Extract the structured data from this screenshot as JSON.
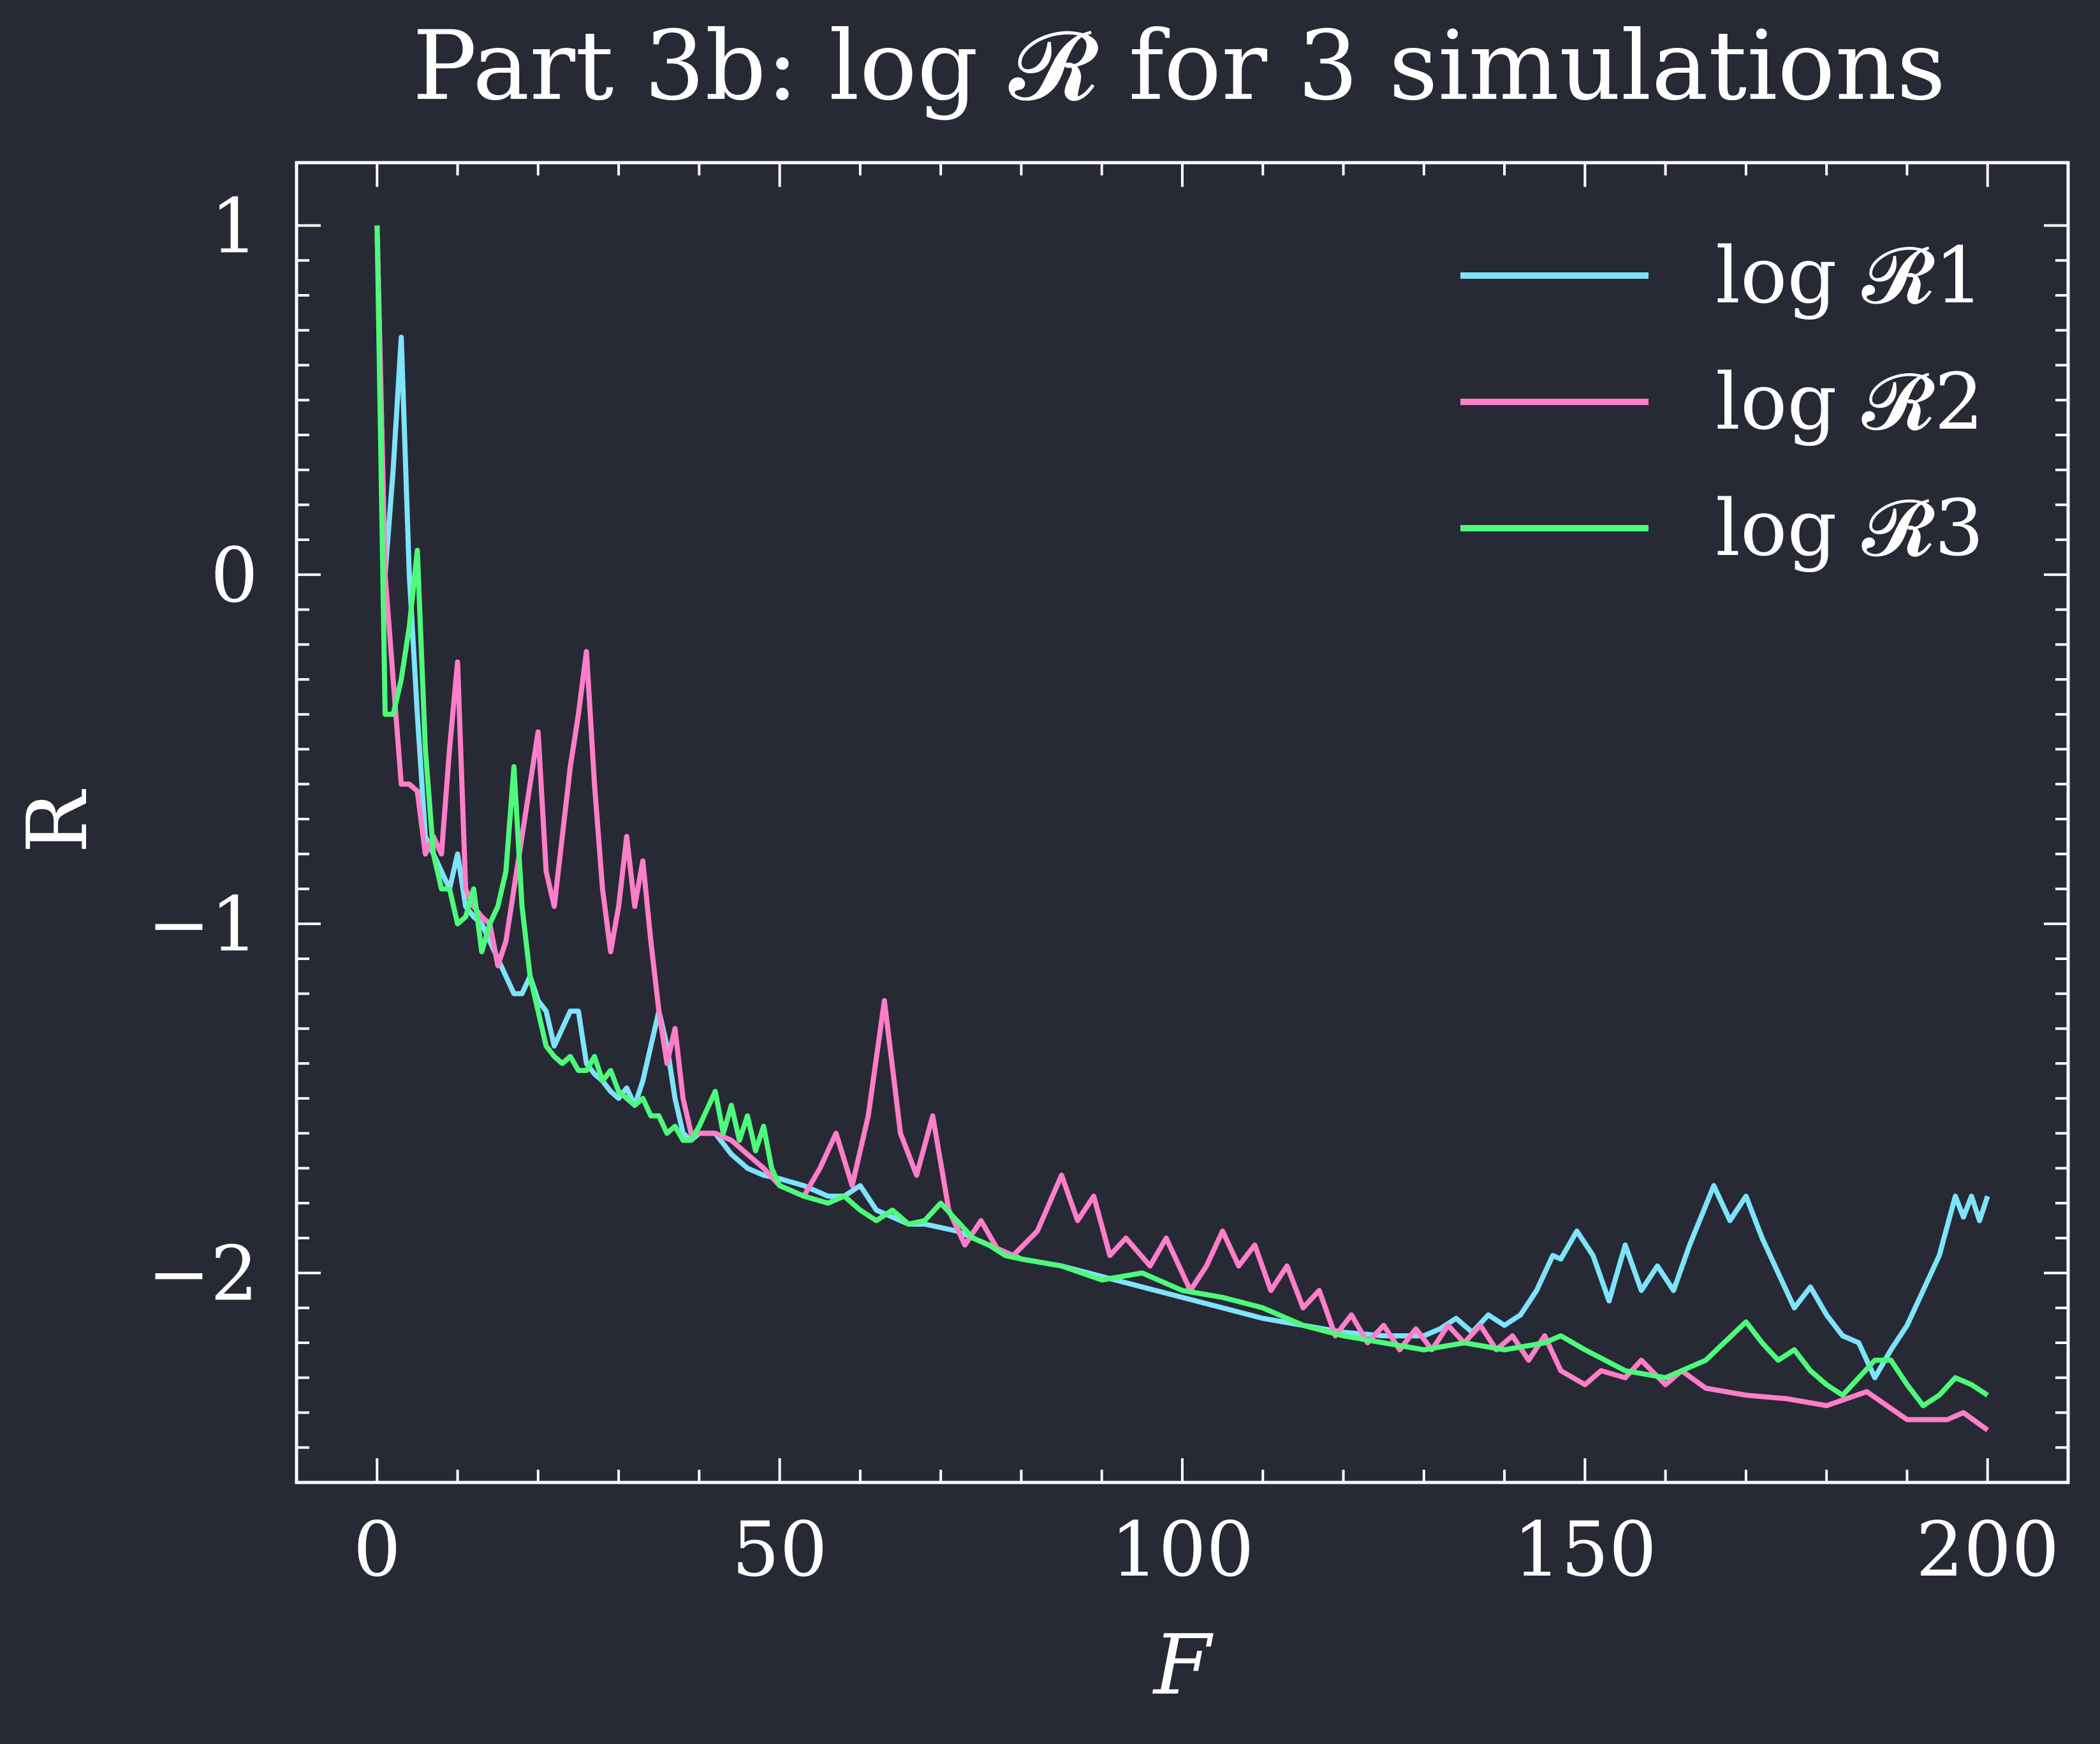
{
  "chart_data": {
    "type": "line",
    "title": "Part 3b: log 𝓡 for 3 simulations",
    "xlabel": "F",
    "ylabel": "R",
    "xlim": [
      -10,
      210
    ],
    "ylim": [
      -2.6,
      1.18
    ],
    "xticks": [
      0,
      50,
      100,
      150,
      200
    ],
    "xtick_labels": [
      "0",
      "50",
      "100",
      "150",
      "200"
    ],
    "yticks": [
      1,
      0,
      -1,
      -2
    ],
    "ytick_labels": [
      "1",
      "0",
      "−1",
      "−2"
    ],
    "grid": false,
    "legend_position": "top-right",
    "series": [
      {
        "name": "log 𝓡1",
        "color": "#7ee3fb",
        "x": [
          0,
          1,
          2,
          3,
          4,
          5,
          6,
          7,
          8,
          9,
          10,
          11,
          12,
          13,
          14,
          15,
          16,
          17,
          18,
          19,
          20,
          21,
          22,
          23,
          24,
          25,
          26,
          27,
          28,
          29,
          30,
          31,
          32,
          33,
          34,
          35,
          36,
          37,
          38,
          39,
          40,
          42,
          44,
          46,
          48,
          50,
          53,
          56,
          58,
          60,
          62,
          64,
          66,
          68,
          70,
          72,
          74,
          76,
          78,
          80,
          85,
          90,
          95,
          100,
          105,
          110,
          115,
          120,
          125,
          130,
          132,
          134,
          136,
          138,
          140,
          142,
          144,
          146,
          147,
          149,
          151,
          153,
          155,
          157,
          159,
          161,
          163,
          166,
          168,
          170,
          172,
          174,
          176,
          178,
          180,
          182,
          184,
          186,
          188,
          190,
          192,
          194,
          196,
          197,
          198,
          199,
          200
        ],
        "y": [
          1,
          0,
          0.3,
          0.68,
          0,
          -0.4,
          -0.75,
          -0.8,
          -0.85,
          -0.9,
          -0.8,
          -0.95,
          -0.98,
          -1.0,
          -1.05,
          -1.1,
          -1.15,
          -1.2,
          -1.2,
          -1.15,
          -1.22,
          -1.25,
          -1.35,
          -1.3,
          -1.25,
          -1.25,
          -1.4,
          -1.43,
          -1.45,
          -1.48,
          -1.5,
          -1.47,
          -1.52,
          -1.45,
          -1.35,
          -1.25,
          -1.35,
          -1.5,
          -1.6,
          -1.62,
          -1.6,
          -1.6,
          -1.66,
          -1.7,
          -1.72,
          -1.73,
          -1.75,
          -1.78,
          -1.78,
          -1.75,
          -1.82,
          -1.84,
          -1.86,
          -1.86,
          -1.87,
          -1.88,
          -1.9,
          -1.92,
          -1.94,
          -1.96,
          -1.98,
          -2.01,
          -2.04,
          -2.07,
          -2.1,
          -2.13,
          -2.15,
          -2.17,
          -2.18,
          -2.18,
          -2.16,
          -2.13,
          -2.17,
          -2.12,
          -2.15,
          -2.12,
          -2.05,
          -1.95,
          -1.96,
          -1.88,
          -1.95,
          -2.08,
          -1.92,
          -2.05,
          -1.98,
          -2.05,
          -1.92,
          -1.75,
          -1.85,
          -1.78,
          -1.9,
          -2.0,
          -2.1,
          -2.04,
          -2.12,
          -2.18,
          -2.2,
          -2.3,
          -2.22,
          -2.15,
          -2.05,
          -1.95,
          -1.78,
          -1.84,
          -1.78,
          -1.85,
          -1.78
        ]
      },
      {
        "name": "log 𝓡2",
        "color": "#ff7ec8",
        "x": [
          0,
          1,
          2,
          3,
          4,
          5,
          6,
          7,
          8,
          9,
          10,
          11,
          12,
          13,
          14,
          15,
          16,
          17,
          18,
          19,
          20,
          21,
          22,
          23,
          24,
          25,
          26,
          27,
          28,
          29,
          30,
          31,
          32,
          33,
          34,
          35,
          36,
          37,
          38,
          39,
          40,
          42,
          44,
          46,
          48,
          50,
          53,
          55,
          57,
          59,
          61,
          63,
          65,
          67,
          69,
          71,
          73,
          75,
          77,
          79,
          82,
          85,
          87,
          89,
          91,
          93,
          96,
          98,
          101,
          103,
          105,
          107,
          109,
          111,
          113,
          115,
          117,
          119,
          121,
          123,
          125,
          127,
          129,
          131,
          133,
          135,
          137,
          139,
          141,
          143,
          145,
          147,
          150,
          152,
          155,
          157,
          160,
          162,
          165,
          170,
          175,
          180,
          185,
          190,
          195,
          197,
          200
        ],
        "y": [
          1,
          0,
          -0.3,
          -0.6,
          -0.6,
          -0.62,
          -0.8,
          -0.75,
          -0.8,
          -0.5,
          -0.25,
          -0.9,
          -0.95,
          -0.98,
          -1.0,
          -1.12,
          -1.05,
          -0.9,
          -0.75,
          -0.6,
          -0.45,
          -0.85,
          -0.95,
          -0.75,
          -0.55,
          -0.4,
          -0.22,
          -0.6,
          -0.9,
          -1.08,
          -0.95,
          -0.75,
          -0.95,
          -0.82,
          -1.05,
          -1.25,
          -1.4,
          -1.3,
          -1.5,
          -1.6,
          -1.6,
          -1.6,
          -1.62,
          -1.66,
          -1.7,
          -1.75,
          -1.78,
          -1.7,
          -1.6,
          -1.75,
          -1.55,
          -1.22,
          -1.6,
          -1.72,
          -1.55,
          -1.82,
          -1.92,
          -1.85,
          -1.93,
          -1.95,
          -1.88,
          -1.72,
          -1.85,
          -1.78,
          -1.95,
          -1.9,
          -1.98,
          -1.9,
          -2.05,
          -1.98,
          -1.88,
          -1.98,
          -1.92,
          -2.05,
          -1.98,
          -2.1,
          -2.05,
          -2.18,
          -2.12,
          -2.2,
          -2.15,
          -2.22,
          -2.16,
          -2.22,
          -2.15,
          -2.2,
          -2.15,
          -2.22,
          -2.18,
          -2.25,
          -2.18,
          -2.28,
          -2.32,
          -2.28,
          -2.3,
          -2.25,
          -2.32,
          -2.28,
          -2.33,
          -2.35,
          -2.36,
          -2.38,
          -2.34,
          -2.42,
          -2.42,
          -2.4,
          -2.45
        ]
      },
      {
        "name": "log 𝓡3",
        "color": "#4dfa7b",
        "x": [
          0,
          1,
          2,
          3,
          4,
          5,
          6,
          7,
          8,
          9,
          10,
          11,
          12,
          13,
          14,
          15,
          16,
          17,
          18,
          19,
          20,
          21,
          22,
          23,
          24,
          25,
          26,
          27,
          28,
          29,
          30,
          31,
          32,
          33,
          34,
          35,
          36,
          37,
          38,
          39,
          40,
          42,
          43,
          44,
          45,
          46,
          47,
          48,
          49,
          50,
          53,
          56,
          58,
          60,
          62,
          64,
          66,
          68,
          70,
          72,
          74,
          76,
          78,
          80,
          85,
          90,
          95,
          100,
          105,
          110,
          115,
          120,
          125,
          130,
          135,
          140,
          145,
          147,
          150,
          155,
          160,
          165,
          170,
          172,
          174,
          176,
          178,
          180,
          182,
          184,
          186,
          188,
          190,
          192,
          194,
          196,
          198,
          200
        ],
        "y": [
          1,
          -0.4,
          -0.4,
          -0.3,
          -0.15,
          0.07,
          -0.5,
          -0.8,
          -0.9,
          -0.9,
          -1.0,
          -0.98,
          -0.9,
          -1.08,
          -1.0,
          -0.95,
          -0.85,
          -0.55,
          -0.95,
          -1.15,
          -1.25,
          -1.35,
          -1.38,
          -1.4,
          -1.38,
          -1.42,
          -1.42,
          -1.38,
          -1.45,
          -1.42,
          -1.48,
          -1.5,
          -1.52,
          -1.5,
          -1.55,
          -1.55,
          -1.6,
          -1.58,
          -1.62,
          -1.62,
          -1.58,
          -1.48,
          -1.6,
          -1.52,
          -1.62,
          -1.55,
          -1.65,
          -1.58,
          -1.7,
          -1.75,
          -1.78,
          -1.8,
          -1.78,
          -1.82,
          -1.85,
          -1.82,
          -1.86,
          -1.85,
          -1.8,
          -1.85,
          -1.9,
          -1.92,
          -1.95,
          -1.96,
          -1.98,
          -2.02,
          -2.0,
          -2.05,
          -2.07,
          -2.1,
          -2.15,
          -2.18,
          -2.2,
          -2.22,
          -2.2,
          -2.22,
          -2.2,
          -2.18,
          -2.22,
          -2.28,
          -2.3,
          -2.25,
          -2.14,
          -2.2,
          -2.25,
          -2.22,
          -2.28,
          -2.32,
          -2.35,
          -2.3,
          -2.25,
          -2.25,
          -2.32,
          -2.38,
          -2.35,
          -2.3,
          -2.32,
          -2.35
        ]
      }
    ]
  }
}
